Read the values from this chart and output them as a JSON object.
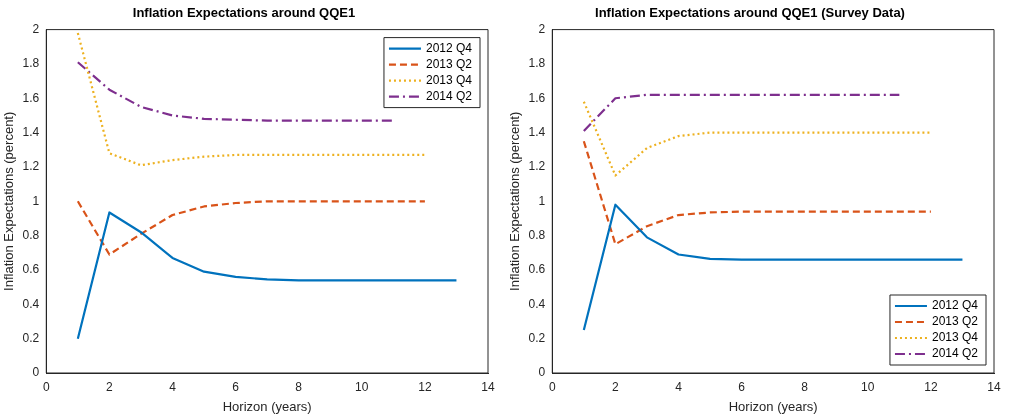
{
  "chart_data": [
    {
      "type": "line",
      "title": "Inflation Expectations around QQE1",
      "xlabel": "Horizon (years)",
      "ylabel": "Inflation Expectations (percent)",
      "xlim": [
        0,
        14
      ],
      "xticks": [
        0,
        2,
        4,
        6,
        8,
        10,
        12,
        14
      ],
      "ylim": [
        0,
        2
      ],
      "yticks": [
        0,
        0.2,
        0.4,
        0.6,
        0.8,
        1,
        1.2,
        1.4,
        1.6,
        1.8,
        2
      ],
      "grid": false,
      "legend": "top right",
      "series": [
        {
          "name": "2012 Q4",
          "color": "#0072bd",
          "line_style": "solid",
          "x": [
            1,
            2,
            3,
            4,
            5,
            6,
            7,
            8,
            9,
            10,
            11,
            12,
            13
          ],
          "values": [
            0.2,
            0.935,
            0.82,
            0.67,
            0.59,
            0.56,
            0.545,
            0.54,
            0.54,
            0.54,
            0.54,
            0.54,
            0.54
          ]
        },
        {
          "name": "2013 Q2",
          "color": "#d95319",
          "line_style": "dashed",
          "x": [
            1,
            2,
            3,
            4,
            5,
            6,
            7,
            8,
            9,
            10,
            11,
            12
          ],
          "values": [
            1.0,
            0.69,
            0.81,
            0.92,
            0.97,
            0.99,
            1.0,
            1.0,
            1.0,
            1.0,
            1.0,
            1.0
          ]
        },
        {
          "name": "2013 Q4",
          "color": "#edb120",
          "line_style": "dotted",
          "x": [
            1,
            2,
            3,
            4,
            5,
            6,
            7,
            8,
            9,
            10,
            11,
            12
          ],
          "values": [
            1.98,
            1.28,
            1.21,
            1.24,
            1.26,
            1.27,
            1.27,
            1.27,
            1.27,
            1.27,
            1.27,
            1.27
          ]
        },
        {
          "name": "2014 Q2",
          "color": "#7e2f8e",
          "line_style": "dashdot",
          "x": [
            1,
            2,
            3,
            4,
            5,
            6,
            7,
            8,
            9,
            10,
            11
          ],
          "values": [
            1.81,
            1.65,
            1.55,
            1.5,
            1.48,
            1.475,
            1.47,
            1.47,
            1.47,
            1.47,
            1.47
          ]
        }
      ]
    },
    {
      "type": "line",
      "title": "Inflation Expectations around QQE1 (Survey Data)",
      "xlabel": "Horizon (years)",
      "ylabel": "Inflation Expectations (percent)",
      "xlim": [
        0,
        14
      ],
      "xticks": [
        0,
        2,
        4,
        6,
        8,
        10,
        12,
        14
      ],
      "ylim": [
        0,
        2
      ],
      "yticks": [
        0,
        0.2,
        0.4,
        0.6,
        0.8,
        1,
        1.2,
        1.4,
        1.6,
        1.8,
        2
      ],
      "grid": false,
      "legend": "bottom right",
      "series": [
        {
          "name": "2012 Q4",
          "color": "#0072bd",
          "line_style": "solid",
          "x": [
            1,
            2,
            3,
            4,
            5,
            6,
            7,
            8,
            9,
            10,
            11,
            12,
            13
          ],
          "values": [
            0.25,
            0.98,
            0.79,
            0.69,
            0.665,
            0.66,
            0.66,
            0.66,
            0.66,
            0.66,
            0.66,
            0.66,
            0.66
          ]
        },
        {
          "name": "2013 Q2",
          "color": "#d95319",
          "line_style": "dashed",
          "x": [
            1,
            2,
            3,
            4,
            5,
            6,
            7,
            8,
            9,
            10,
            11,
            12
          ],
          "values": [
            1.35,
            0.75,
            0.855,
            0.92,
            0.935,
            0.94,
            0.94,
            0.94,
            0.94,
            0.94,
            0.94,
            0.94
          ]
        },
        {
          "name": "2013 Q4",
          "color": "#edb120",
          "line_style": "dotted",
          "x": [
            1,
            2,
            3,
            4,
            5,
            6,
            7,
            8,
            9,
            10,
            11,
            12
          ],
          "values": [
            1.58,
            1.15,
            1.31,
            1.38,
            1.4,
            1.4,
            1.4,
            1.4,
            1.4,
            1.4,
            1.4,
            1.4
          ]
        },
        {
          "name": "2014 Q2",
          "color": "#7e2f8e",
          "line_style": "dashdot",
          "x": [
            1,
            2,
            3,
            4,
            5,
            6,
            7,
            8,
            9,
            10,
            11
          ],
          "values": [
            1.41,
            1.6,
            1.62,
            1.62,
            1.62,
            1.62,
            1.62,
            1.62,
            1.62,
            1.62,
            1.62
          ]
        }
      ]
    }
  ]
}
